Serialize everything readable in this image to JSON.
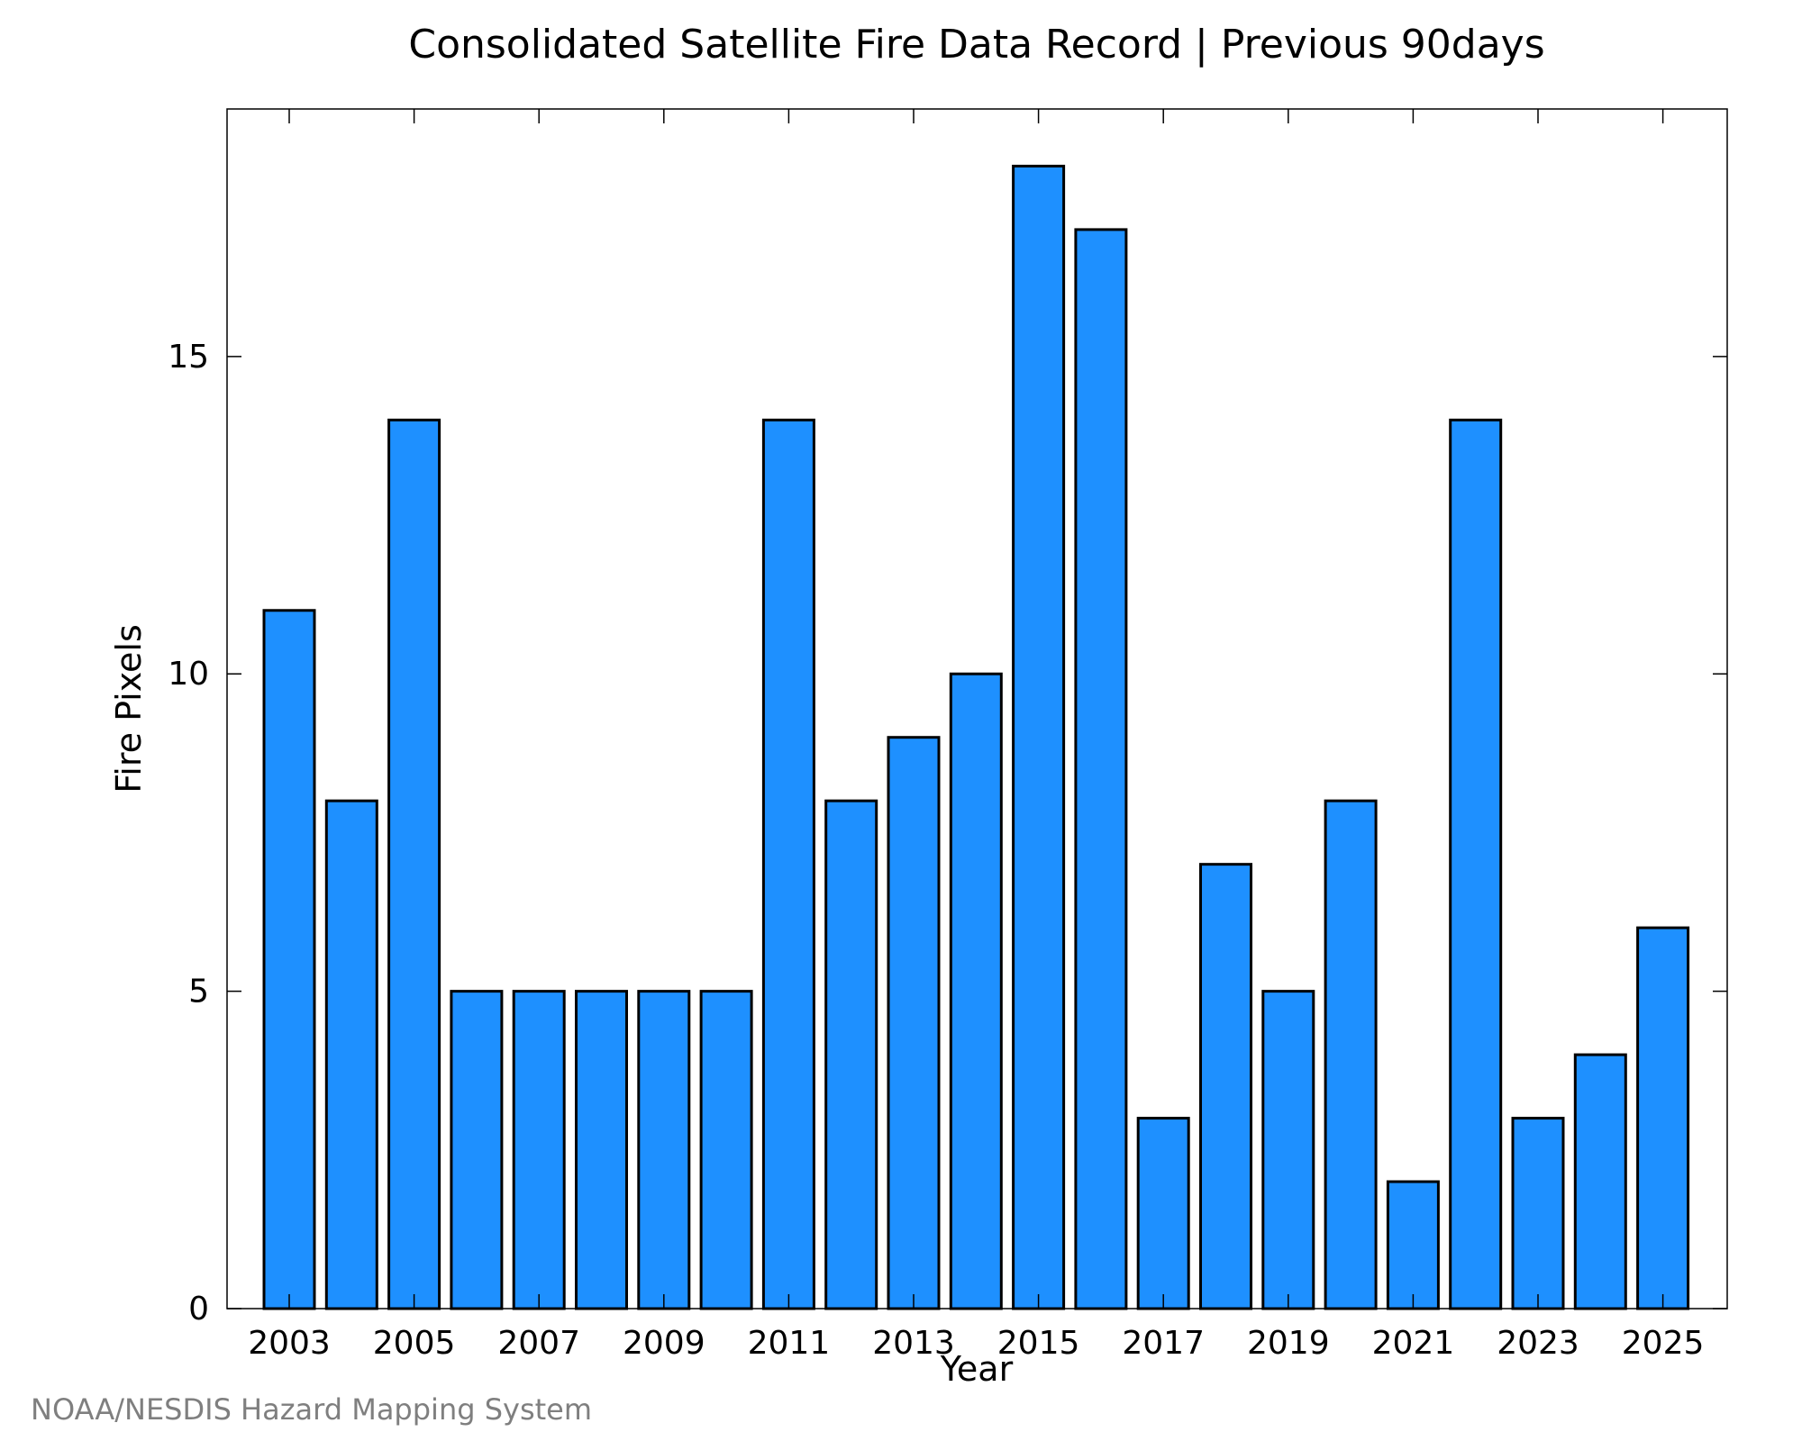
{
  "chart_data": {
    "type": "bar",
    "title": "Consolidated Satellite Fire Data Record | Previous 90days",
    "xlabel": "Year",
    "ylabel": "Fire Pixels",
    "categories": [
      "2003",
      "2004",
      "2005",
      "2006",
      "2007",
      "2008",
      "2009",
      "2010",
      "2011",
      "2012",
      "2013",
      "2014",
      "2015",
      "2016",
      "2017",
      "2018",
      "2019",
      "2020",
      "2021",
      "2022",
      "2023",
      "2024",
      "2025"
    ],
    "values": [
      11,
      8,
      14,
      5,
      5,
      5,
      5,
      5,
      14,
      8,
      9,
      10,
      18,
      17,
      3,
      7,
      5,
      8,
      2,
      14,
      3,
      4,
      6
    ],
    "x_tick_labels": [
      "2003",
      "2005",
      "2007",
      "2009",
      "2011",
      "2013",
      "2015",
      "2017",
      "2019",
      "2021",
      "2023",
      "2025"
    ],
    "y_ticks": [
      0,
      5,
      10,
      15
    ],
    "ylim": [
      0,
      18.9
    ],
    "bar_color": "#1e90ff",
    "grid": false,
    "legend": "none"
  },
  "footer": {
    "credit": "NOAA/NESDIS Hazard Mapping System"
  }
}
